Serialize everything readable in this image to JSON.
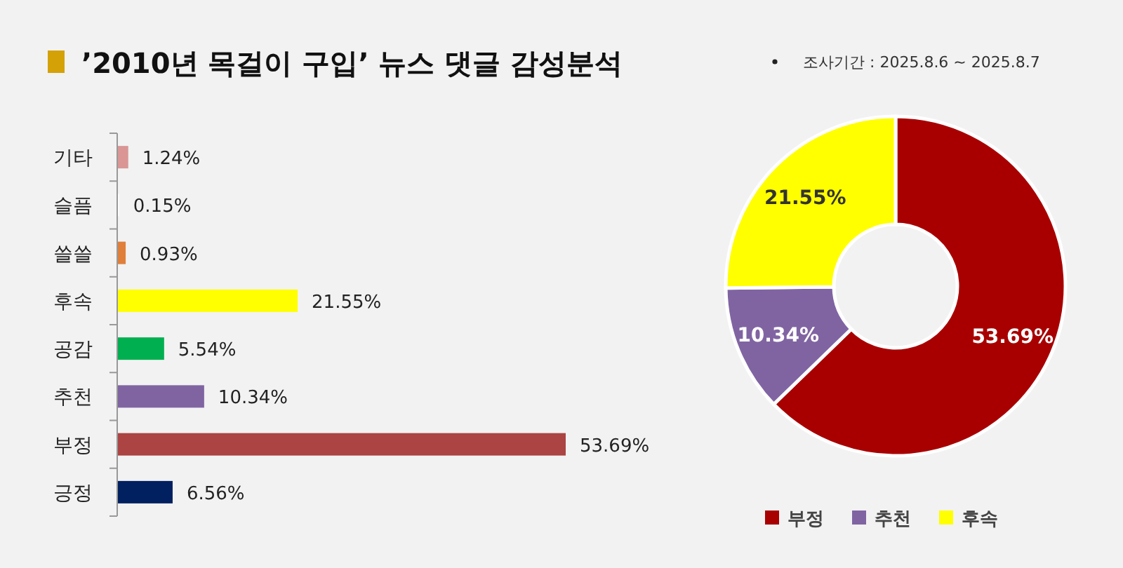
{
  "chart_data": [
    {
      "type": "bar",
      "orientation": "horizontal",
      "title": "’2010년 목걸이 구입’ 뉴스 댓글 감성분석",
      "categories": [
        "기타",
        "슬픔",
        "쓸쓸",
        "후속",
        "공감",
        "추천",
        "부정",
        "긍정"
      ],
      "values": [
        1.24,
        0.15,
        0.93,
        21.55,
        5.54,
        10.34,
        53.69,
        6.56
      ],
      "colors": [
        "#d99694",
        "#ffffff",
        "#e07f3a",
        "#ffff00",
        "#00b050",
        "#8064a2",
        "#ab4442",
        "#002060"
      ],
      "value_labels": [
        "1.24%",
        "0.15%",
        "0.93%",
        "21.55%",
        "5.54%",
        "10.34%",
        "53.69%",
        "6.56%"
      ]
    },
    {
      "type": "donut",
      "subtitle": "조사기간 : 2025.8.6 ~ 2025.8.7",
      "categories": [
        "부정",
        "추천",
        "후속"
      ],
      "values": [
        53.69,
        10.34,
        21.55
      ],
      "colors": [
        "#a80000",
        "#8064a2",
        "#ffff00"
      ],
      "value_labels": [
        "53.69%",
        "10.34%",
        "21.55%"
      ],
      "legend": "bottom"
    }
  ]
}
